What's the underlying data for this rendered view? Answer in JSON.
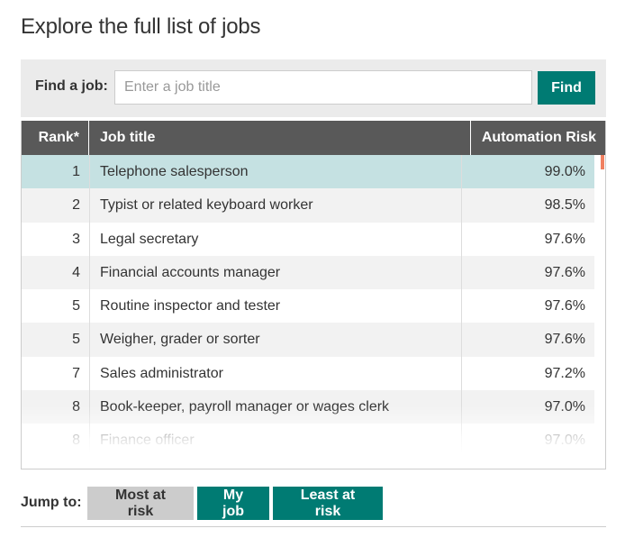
{
  "page": {
    "title": "Explore the full list of jobs"
  },
  "search": {
    "label": "Find a job:",
    "placeholder": "Enter a job title",
    "value": "",
    "button_label": "Find"
  },
  "table": {
    "columns": {
      "rank": "Rank*",
      "title": "Job title",
      "risk": "Automation Risk"
    },
    "rows": [
      {
        "rank": "1",
        "title": "Telephone salesperson",
        "risk": "99.0%"
      },
      {
        "rank": "2",
        "title": "Typist or related keyboard worker",
        "risk": "98.5%"
      },
      {
        "rank": "3",
        "title": "Legal secretary",
        "risk": "97.6%"
      },
      {
        "rank": "4",
        "title": "Financial accounts manager",
        "risk": "97.6%"
      },
      {
        "rank": "5",
        "title": "Routine inspector and tester",
        "risk": "97.6%"
      },
      {
        "rank": "5",
        "title": "Weigher, grader or sorter",
        "risk": "97.6%"
      },
      {
        "rank": "7",
        "title": "Sales administrator",
        "risk": "97.2%"
      },
      {
        "rank": "8",
        "title": "Book-keeper, payroll manager or wages clerk",
        "risk": "97.0%"
      },
      {
        "rank": "8",
        "title": "Finance officer",
        "risk": "97.0%"
      }
    ],
    "selected_index": 0
  },
  "jump": {
    "label": "Jump to:",
    "most_label": "Most at risk",
    "my_label": "My job",
    "least_label": "Least at risk"
  },
  "colors": {
    "accent": "#007b73",
    "header_bg": "#595959",
    "selected_row": "#c5e1e2",
    "scroll_thumb": "#f08060"
  }
}
